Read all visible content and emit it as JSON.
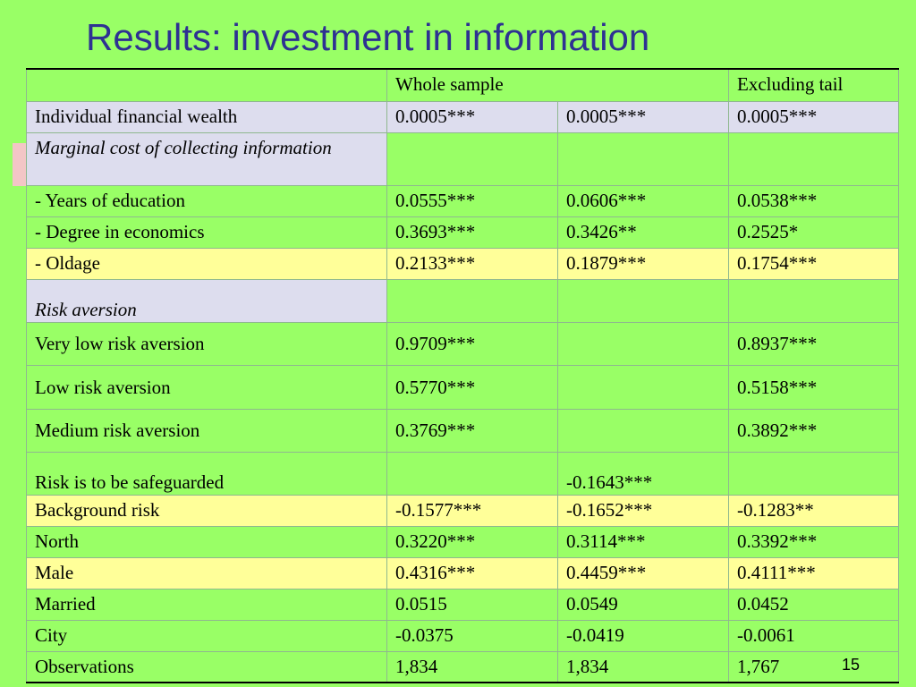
{
  "slide": {
    "title": "Results: investment in information",
    "page_number": "15"
  },
  "table": {
    "header": {
      "label": "",
      "whole_sample": "Whole sample",
      "excluding_tail": "Excluding tail"
    },
    "rows": [
      {
        "label": "Individual financial wealth",
        "c1": "0.0005***",
        "c2": "0.0005***",
        "c3": "0.0005***"
      },
      {
        "label": "Marginal cost of collecting information",
        "c1": "",
        "c2": "",
        "c3": ""
      },
      {
        "label": "- Years of education",
        "c1": "0.0555***",
        "c2": "0.0606***",
        "c3": "0.0538***"
      },
      {
        "label": "- Degree in economics",
        "c1": "0.3693***",
        "c2": "0.3426**",
        "c3": "0.2525*"
      },
      {
        "label": "- Oldage",
        "c1": "0.2133***",
        "c2": "0.1879***",
        "c3": "0.1754***"
      },
      {
        "label": "Risk aversion",
        "c1": "",
        "c2": "",
        "c3": ""
      },
      {
        "label": "Very low risk aversion",
        "c1": "0.9709***",
        "c2": "",
        "c3": "0.8937***"
      },
      {
        "label": "Low risk aversion",
        "c1": "0.5770***",
        "c2": "",
        "c3": "0.5158***"
      },
      {
        "label": "Medium risk aversion",
        "c1": "0.3769***",
        "c2": "",
        "c3": "0.3892***"
      },
      {
        "label": "Risk is to be safeguarded",
        "c1": "",
        "c2": "-0.1643***",
        "c3": ""
      },
      {
        "label": "Background risk",
        "c1": "-0.1577***",
        "c2": "-0.1652***",
        "c3": "-0.1283**"
      },
      {
        "label": "North",
        "c1": "0.3220***",
        "c2": "0.3114***",
        "c3": "0.3392***"
      },
      {
        "label": "Male",
        "c1": "0.4316***",
        "c2": "0.4459***",
        "c3": "0.4111***"
      },
      {
        "label": "Married",
        "c1": "0.0515",
        "c2": "0.0549",
        "c3": "0.0452"
      },
      {
        "label": "City",
        "c1": "-0.0375",
        "c2": "-0.0419",
        "c3": "-0.0061"
      },
      {
        "label": "Observations",
        "c1": "1,834",
        "c2": "1,834",
        "c3": "1,767"
      }
    ]
  },
  "colors": {
    "background": "#99ff66",
    "title": "#2e3192",
    "row_lavender": "#ddddee",
    "row_yellow": "#ffff99"
  }
}
